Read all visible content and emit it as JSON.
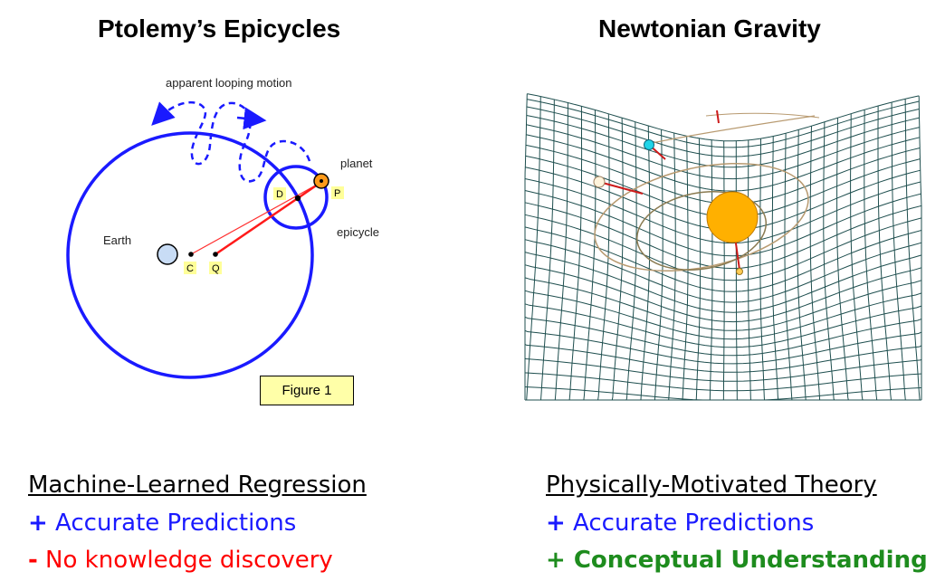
{
  "left": {
    "title": "Ptolemy’s Epicycles",
    "labels": {
      "apparent": "apparent looping motion",
      "planet": "planet",
      "epicycle": "epicycle",
      "earth": "Earth",
      "D": "D",
      "P": "P",
      "C": "C",
      "Q": "Q"
    },
    "figure_label": "Figure 1",
    "heading": "Machine-Learned Regression",
    "line1_sign": "+",
    "line1_text": " Accurate Predictions",
    "line2_sign": "-",
    "line2_text": " No knowledge discovery"
  },
  "right": {
    "title": "Newtonian Gravity",
    "heading": "Physically-Motivated Theory",
    "line1_sign": "+",
    "line1_text": " Accurate Predictions",
    "line2_sign": "+",
    "line2_text": " Conceptual Understanding"
  },
  "colors": {
    "circle_blue": "#1a1aff",
    "grid": "#1f4f4f",
    "sun": "#ffb000",
    "planet_orange": "#ff9a1a",
    "earth_fill": "#c8dcf5",
    "tag_yellow": "#ffff99"
  }
}
